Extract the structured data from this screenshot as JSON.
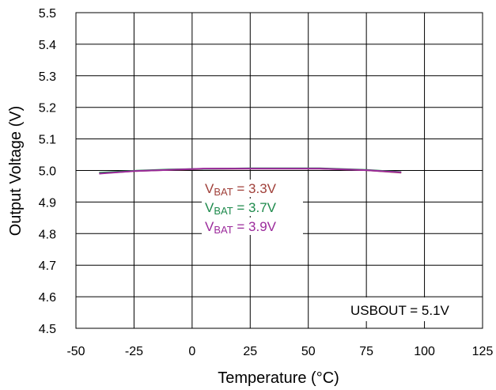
{
  "chart_data": {
    "type": "line",
    "title": "",
    "xlabel": "Temperature (°C)",
    "ylabel": "Output Voltage (V)",
    "xlim": [
      -50,
      125
    ],
    "ylim": [
      4.5,
      5.5
    ],
    "x_ticks": [
      -50,
      -25,
      0,
      25,
      50,
      75,
      100,
      125
    ],
    "y_ticks": [
      4.5,
      4.6,
      4.7,
      4.8,
      4.9,
      5.0,
      5.1,
      5.2,
      5.3,
      5.4,
      5.5
    ],
    "x_tick_labels": [
      "-50",
      "-25",
      "0",
      "25",
      "50",
      "75",
      "100",
      "125"
    ],
    "y_tick_labels": [
      "4.5",
      "4.6",
      "4.7",
      "4.8",
      "4.9",
      "5.0",
      "5.1",
      "5.2",
      "5.3",
      "5.4",
      "5.5"
    ],
    "grid": true,
    "series": [
      {
        "label_main": "V",
        "label_sub": "BAT",
        "label_rest": " = 3.3V",
        "color": "#a0403a",
        "x": [
          -40,
          -25,
          -10,
          5,
          25,
          55,
          75,
          90
        ],
        "y": [
          4.991,
          4.998,
          5.002,
          5.005,
          5.006,
          5.006,
          5.001,
          4.993
        ]
      },
      {
        "label_main": "V",
        "label_sub": "BAT",
        "label_rest": " = 3.7V",
        "color": "#1e8a4c",
        "x": [
          -40,
          -25,
          -10,
          5,
          25,
          55,
          75,
          90
        ],
        "y": [
          4.993,
          4.999,
          5.003,
          5.005,
          5.007,
          5.007,
          5.002,
          4.995
        ]
      },
      {
        "label_main": "V",
        "label_sub": "BAT",
        "label_rest": " = 3.9V",
        "color": "#9b2a9b",
        "x": [
          -40,
          -25,
          -10,
          5,
          25,
          55,
          75,
          90
        ],
        "y": [
          4.99,
          4.998,
          5.002,
          5.006,
          5.006,
          5.006,
          5.001,
          4.994
        ]
      }
    ],
    "annotation": "USBOUT = 5.1V"
  }
}
